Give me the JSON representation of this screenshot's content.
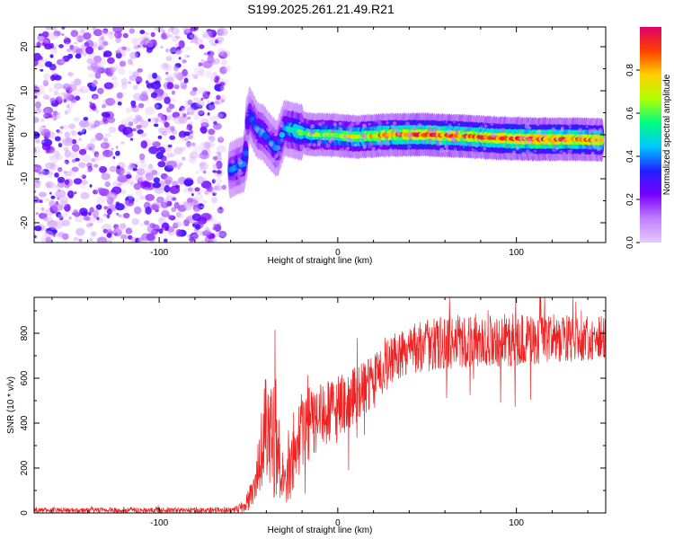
{
  "title": "S199.2025.261.21.49.R21",
  "chart_data": [
    {
      "type": "heatmap",
      "name": "spectrogram",
      "xlabel": "Height of straight line (km)",
      "ylabel": "Frequency (Hz)",
      "xlim": [
        -170,
        150
      ],
      "ylim": [
        -24.5,
        24.5
      ],
      "xticks": [
        -100,
        0,
        100
      ],
      "yticks": [
        -20,
        -10,
        0,
        10,
        20
      ],
      "colorbar": {
        "label": "Normalized spectral amplitude",
        "range": [
          0.0,
          1.0
        ],
        "ticks": [
          0.0,
          0.2,
          0.4,
          0.6,
          0.8
        ],
        "colors": [
          "#e8c8ff",
          "#c080ff",
          "#7a00ff",
          "#2020ff",
          "#00c8ff",
          "#00ff80",
          "#b0ff00",
          "#ffd000",
          "#ff4000",
          "#e0006a"
        ]
      },
      "features": {
        "noise_region_x": [
          -170,
          -63
        ],
        "noise_amplitude_range": [
          0.0,
          0.3
        ],
        "track_points": [
          {
            "x": -60,
            "y": -8,
            "amp": 0.35
          },
          {
            "x": -52,
            "y": -6.5,
            "amp": 0.4
          },
          {
            "x": -50,
            "y": 5,
            "amp": 0.3
          },
          {
            "x": -48,
            "y": 3.5,
            "amp": 0.35
          },
          {
            "x": -45,
            "y": 1,
            "amp": 0.4
          },
          {
            "x": -42,
            "y": 0.5,
            "amp": 0.4
          },
          {
            "x": -38,
            "y": -1.5,
            "amp": 0.35
          },
          {
            "x": -34,
            "y": -3.5,
            "amp": 0.4
          },
          {
            "x": -30,
            "y": 1.5,
            "amp": 0.4
          },
          {
            "x": -25,
            "y": 1,
            "amp": 0.5
          },
          {
            "x": -15,
            "y": 0,
            "amp": 0.6
          },
          {
            "x": -5,
            "y": 0,
            "amp": 0.65
          },
          {
            "x": 10,
            "y": -0.5,
            "amp": 0.7
          },
          {
            "x": 30,
            "y": 0,
            "amp": 0.8
          },
          {
            "x": 50,
            "y": 0,
            "amp": 0.9
          },
          {
            "x": 70,
            "y": -0.3,
            "amp": 0.85
          },
          {
            "x": 90,
            "y": -0.8,
            "amp": 0.85
          },
          {
            "x": 110,
            "y": -1,
            "amp": 0.9
          },
          {
            "x": 130,
            "y": -1,
            "amp": 0.85
          },
          {
            "x": 148,
            "y": -1.2,
            "amp": 0.8
          }
        ]
      }
    },
    {
      "type": "line",
      "name": "snr",
      "xlabel": "Height of straight line (km)",
      "ylabel": "SNR (10 * v/v)",
      "xlim": [
        -170,
        150
      ],
      "ylim": [
        0,
        960
      ],
      "xticks": [
        -100,
        0,
        100
      ],
      "yticks": [
        0,
        200,
        400,
        600,
        800
      ],
      "color": "#ee2222",
      "series": [
        {
          "name": "SNR",
          "envelope": [
            {
              "x": -170,
              "mean": 12,
              "spread": 12
            },
            {
              "x": -100,
              "mean": 12,
              "spread": 12
            },
            {
              "x": -60,
              "mean": 12,
              "spread": 12
            },
            {
              "x": -52,
              "mean": 30,
              "spread": 30
            },
            {
              "x": -46,
              "mean": 120,
              "spread": 90
            },
            {
              "x": -40,
              "mean": 420,
              "spread": 250
            },
            {
              "x": -35,
              "mean": 350,
              "spread": 300
            },
            {
              "x": -30,
              "mean": 120,
              "spread": 80
            },
            {
              "x": -26,
              "mean": 200,
              "spread": 150
            },
            {
              "x": -20,
              "mean": 380,
              "spread": 180
            },
            {
              "x": -10,
              "mean": 420,
              "spread": 150
            },
            {
              "x": 0,
              "mean": 470,
              "spread": 140
            },
            {
              "x": 10,
              "mean": 520,
              "spread": 130
            },
            {
              "x": 20,
              "mean": 580,
              "spread": 120
            },
            {
              "x": 30,
              "mean": 680,
              "spread": 110
            },
            {
              "x": 40,
              "mean": 730,
              "spread": 110
            },
            {
              "x": 60,
              "mean": 760,
              "spread": 120
            },
            {
              "x": 80,
              "mean": 770,
              "spread": 120
            },
            {
              "x": 100,
              "mean": 770,
              "spread": 120
            },
            {
              "x": 120,
              "mean": 775,
              "spread": 110
            },
            {
              "x": 150,
              "mean": 780,
              "spread": 100
            }
          ]
        }
      ]
    }
  ]
}
